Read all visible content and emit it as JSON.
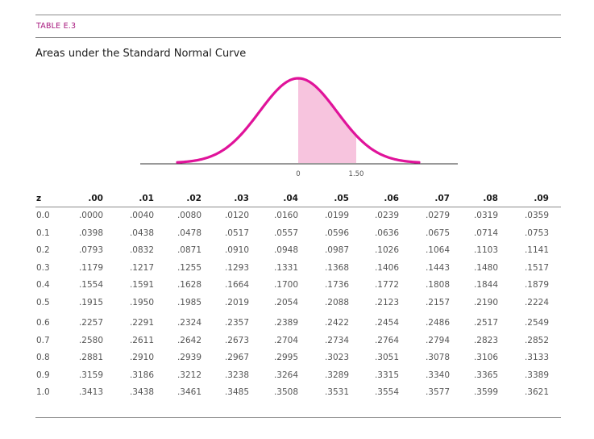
{
  "header": {
    "label": "TABLE E.3",
    "title": "Areas under the Standard Normal Curve"
  },
  "figure": {
    "tick_zero": "0",
    "tick_z": "1.50",
    "curve_color": "#e0139a",
    "fill_color": "#f7c4de",
    "shade_from": 0,
    "shade_to": 1.5
  },
  "table": {
    "columns": [
      "z",
      ".00",
      ".01",
      ".02",
      ".03",
      ".04",
      ".05",
      ".06",
      ".07",
      ".08",
      ".09"
    ],
    "rows": [
      [
        "0.0",
        ".0000",
        ".0040",
        ".0080",
        ".0120",
        ".0160",
        ".0199",
        ".0239",
        ".0279",
        ".0319",
        ".0359"
      ],
      [
        "0.1",
        ".0398",
        ".0438",
        ".0478",
        ".0517",
        ".0557",
        ".0596",
        ".0636",
        ".0675",
        ".0714",
        ".0753"
      ],
      [
        "0.2",
        ".0793",
        ".0832",
        ".0871",
        ".0910",
        ".0948",
        ".0987",
        ".1026",
        ".1064",
        ".1103",
        ".1141"
      ],
      [
        "0.3",
        ".1179",
        ".1217",
        ".1255",
        ".1293",
        ".1331",
        ".1368",
        ".1406",
        ".1443",
        ".1480",
        ".1517"
      ],
      [
        "0.4",
        ".1554",
        ".1591",
        ".1628",
        ".1664",
        ".1700",
        ".1736",
        ".1772",
        ".1808",
        ".1844",
        ".1879"
      ],
      [
        "0.5",
        ".1915",
        ".1950",
        ".1985",
        ".2019",
        ".2054",
        ".2088",
        ".2123",
        ".2157",
        ".2190",
        ".2224"
      ],
      [
        "0.6",
        ".2257",
        ".2291",
        ".2324",
        ".2357",
        ".2389",
        ".2422",
        ".2454",
        ".2486",
        ".2517",
        ".2549"
      ],
      [
        "0.7",
        ".2580",
        ".2611",
        ".2642",
        ".2673",
        ".2704",
        ".2734",
        ".2764",
        ".2794",
        ".2823",
        ".2852"
      ],
      [
        "0.8",
        ".2881",
        ".2910",
        ".2939",
        ".2967",
        ".2995",
        ".3023",
        ".3051",
        ".3078",
        ".3106",
        ".3133"
      ],
      [
        "0.9",
        ".3159",
        ".3186",
        ".3212",
        ".3238",
        ".3264",
        ".3289",
        ".3315",
        ".3340",
        ".3365",
        ".3389"
      ],
      [
        "1.0",
        ".3413",
        ".3438",
        ".3461",
        ".3485",
        ".3508",
        ".3531",
        ".3554",
        ".3577",
        ".3599",
        ".3621"
      ]
    ]
  }
}
